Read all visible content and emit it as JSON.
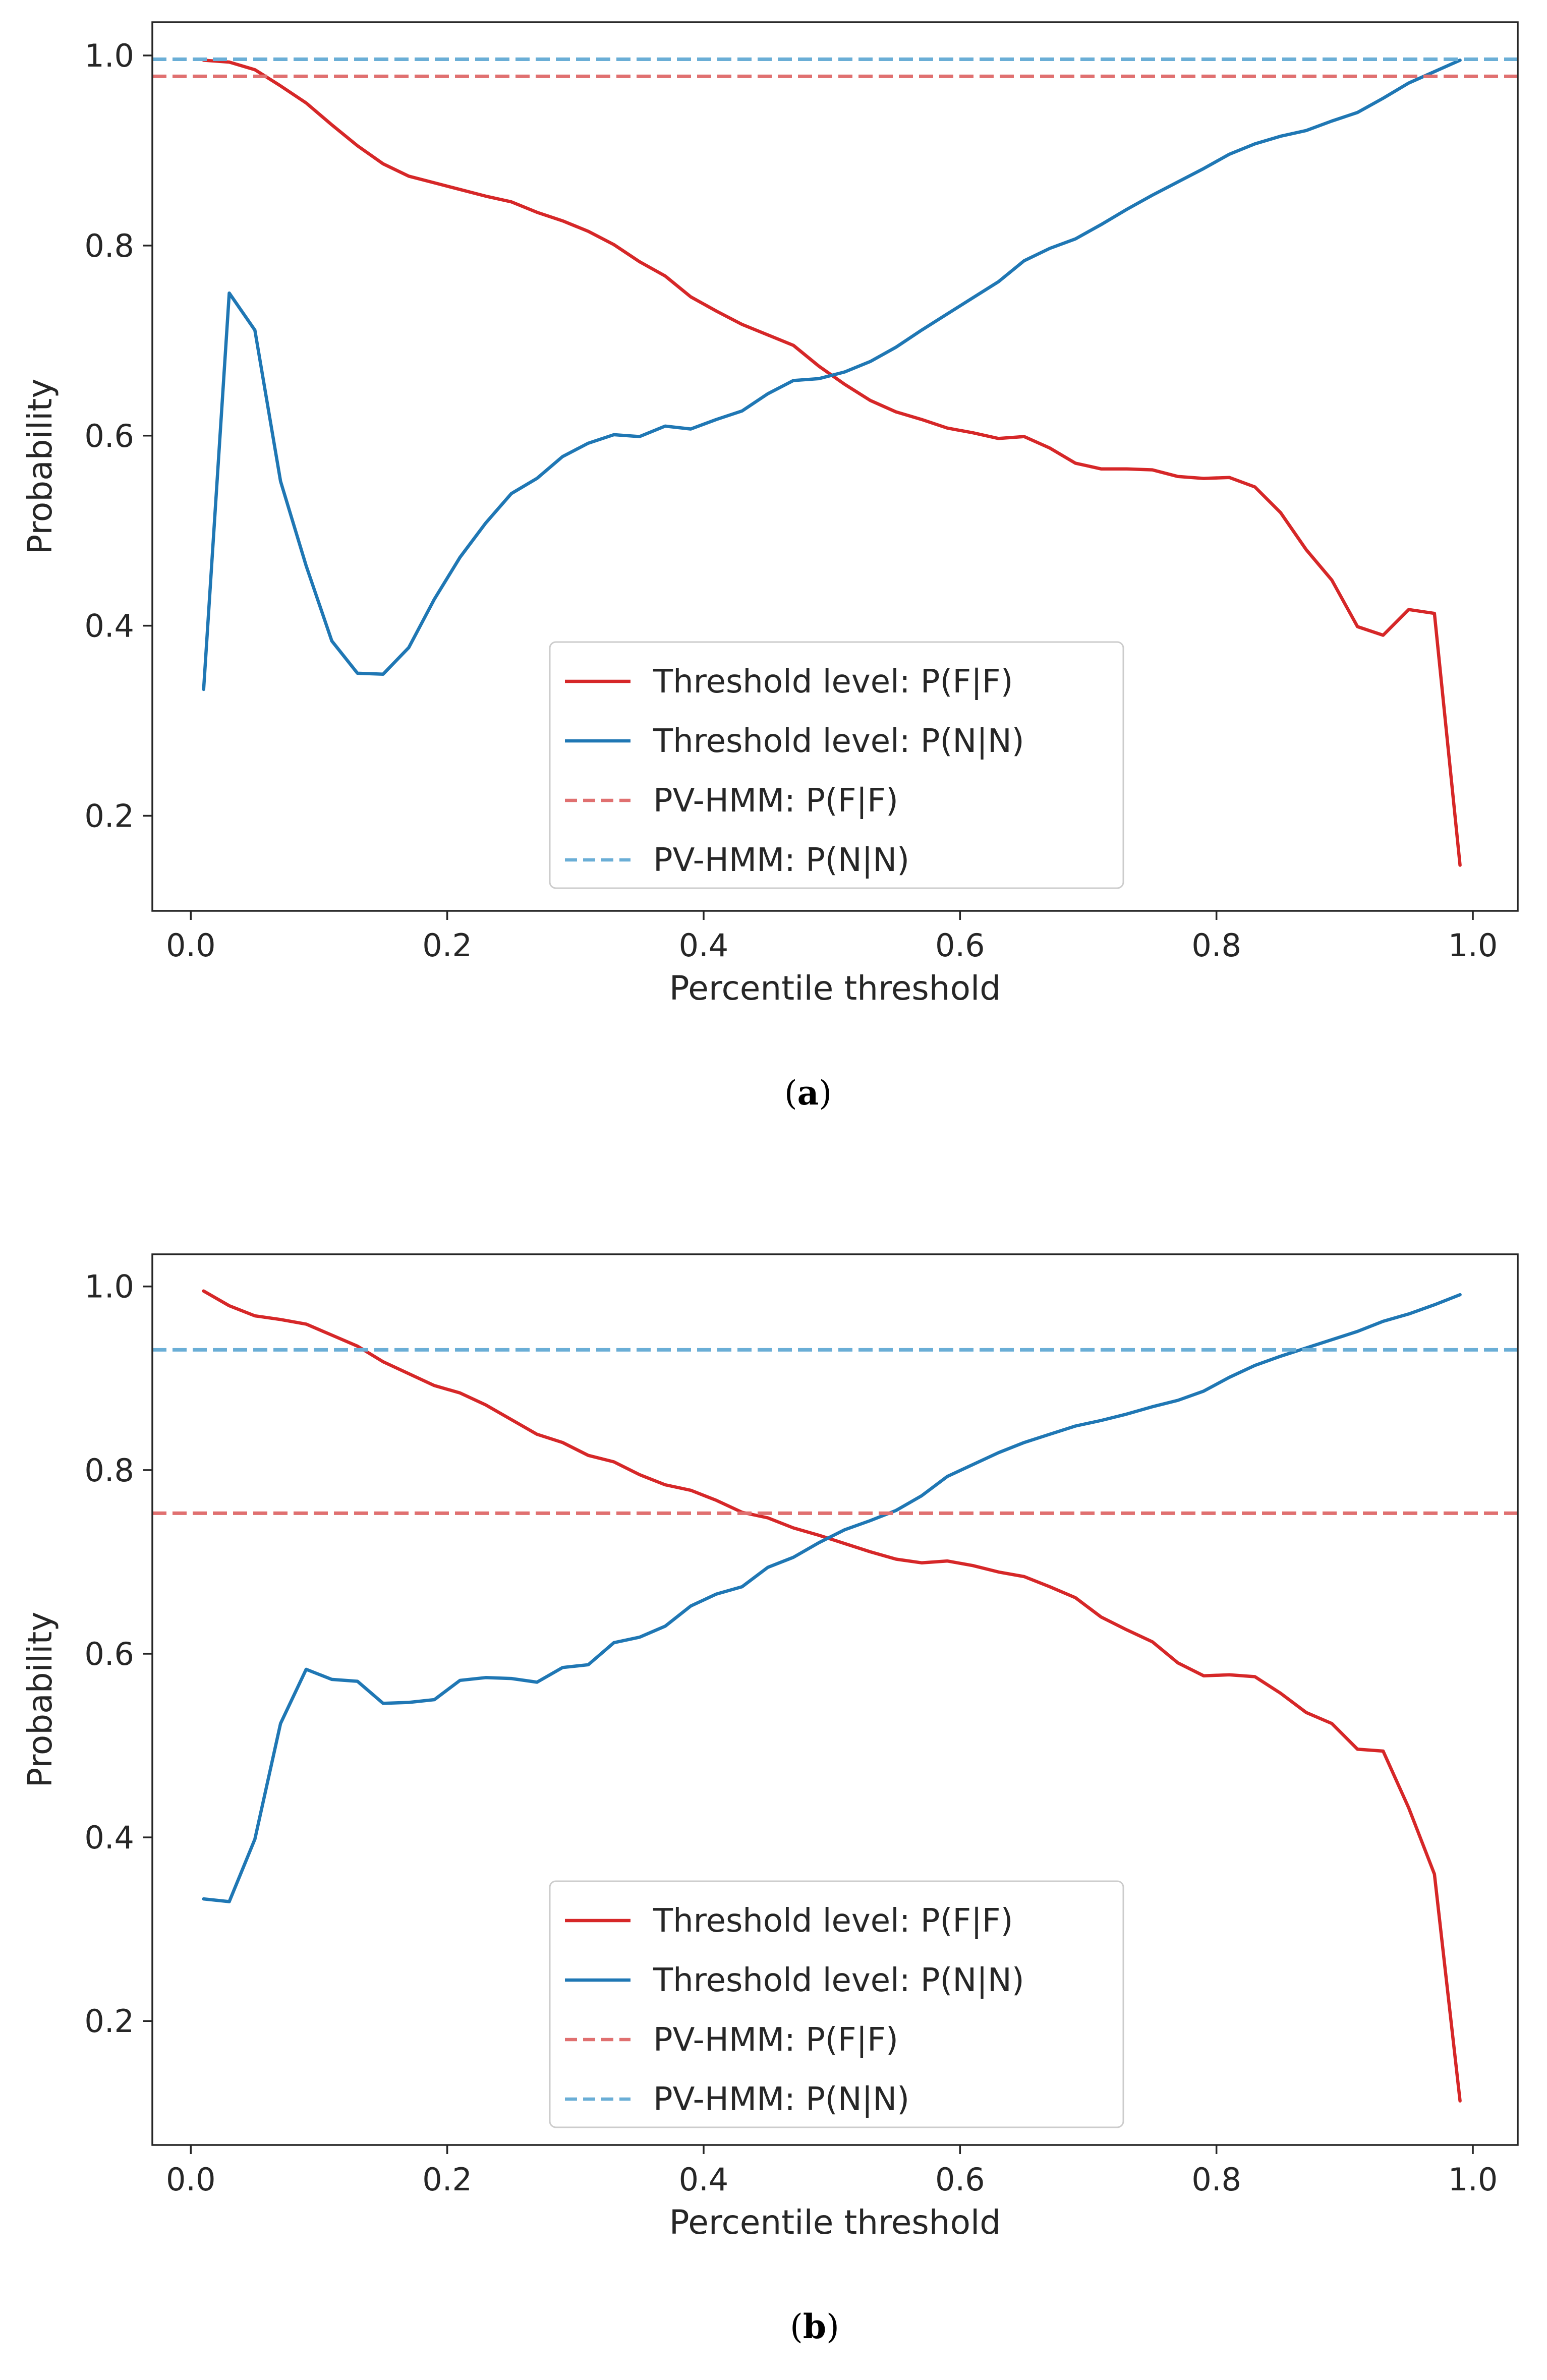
{
  "colors": {
    "red": "#d62728",
    "blue": "#1f77b4",
    "red_dashed": "#e07070",
    "blue_dashed": "#6aaed6",
    "axis": "#262626",
    "legend_border": "#cccccc"
  },
  "chart_data": [
    {
      "type": "line",
      "panel_label": "a",
      "xlabel": "Percentile threshold",
      "ylabel": "Probability",
      "xlim": [
        -0.03,
        1.035
      ],
      "ylim": [
        0.1,
        1.035
      ],
      "xticks": [
        0.0,
        0.2,
        0.4,
        0.6,
        0.8,
        1.0
      ],
      "xtick_labels": [
        "0.0",
        "0.2",
        "0.4",
        "0.6",
        "0.8",
        "1.0"
      ],
      "yticks": [
        0.2,
        0.4,
        0.6,
        0.8,
        1.0
      ],
      "ytick_labels": [
        "0.2",
        "0.4",
        "0.6",
        "0.8",
        "1.0"
      ],
      "grid": false,
      "legend_position": "lower-center",
      "x": [
        0.01,
        0.03,
        0.05,
        0.07,
        0.09,
        0.11,
        0.13,
        0.15,
        0.17,
        0.19,
        0.21,
        0.23,
        0.25,
        0.27,
        0.29,
        0.31,
        0.33,
        0.35,
        0.37,
        0.39,
        0.41,
        0.43,
        0.45,
        0.47,
        0.49,
        0.51,
        0.53,
        0.55,
        0.57,
        0.59,
        0.61,
        0.63,
        0.65,
        0.67,
        0.69,
        0.71,
        0.73,
        0.75,
        0.77,
        0.79,
        0.81,
        0.83,
        0.85,
        0.87,
        0.89,
        0.91,
        0.93,
        0.95,
        0.97,
        0.99
      ],
      "series": [
        {
          "name": "Threshold level: P(F|F)",
          "style": "solid",
          "color": "#d62728",
          "values": [
            0.995,
            0.993,
            0.985,
            0.968,
            0.95,
            0.927,
            0.905,
            0.886,
            0.873,
            0.866,
            0.859,
            0.852,
            0.846,
            0.835,
            0.826,
            0.815,
            0.801,
            0.783,
            0.768,
            0.746,
            0.731,
            0.717,
            0.706,
            0.695,
            0.673,
            0.654,
            0.637,
            0.625,
            0.617,
            0.608,
            0.603,
            0.597,
            0.599,
            0.587,
            0.571,
            0.565,
            0.565,
            0.564,
            0.557,
            0.555,
            0.556,
            0.546,
            0.519,
            0.48,
            0.448,
            0.399,
            0.39,
            0.417,
            0.413,
            0.148
          ]
        },
        {
          "name": "Threshold level: P(N|N)",
          "style": "solid",
          "color": "#1f77b4",
          "values": [
            0.333,
            0.75,
            0.711,
            0.552,
            0.463,
            0.384,
            0.35,
            0.349,
            0.377,
            0.428,
            0.472,
            0.508,
            0.539,
            0.555,
            0.578,
            0.592,
            0.601,
            0.599,
            0.61,
            0.607,
            0.617,
            0.626,
            0.644,
            0.658,
            0.66,
            0.667,
            0.678,
            0.693,
            0.711,
            0.728,
            0.745,
            0.762,
            0.784,
            0.797,
            0.807,
            0.822,
            0.838,
            0.853,
            0.867,
            0.881,
            0.896,
            0.907,
            0.915,
            0.921,
            0.931,
            0.94,
            0.955,
            0.971,
            0.983,
            0.995
          ]
        },
        {
          "name": "PV-HMM: P(F|F)",
          "style": "dashed",
          "color": "#e07070",
          "constant": 0.978
        },
        {
          "name": "PV-HMM: P(N|N)",
          "style": "dashed",
          "color": "#6aaed6",
          "constant": 0.996
        }
      ]
    },
    {
      "type": "line",
      "panel_label": "b",
      "xlabel": "Percentile threshold",
      "ylabel": "Probability",
      "xlim": [
        -0.03,
        1.035
      ],
      "ylim": [
        0.065,
        1.035
      ],
      "xticks": [
        0.0,
        0.2,
        0.4,
        0.6,
        0.8,
        1.0
      ],
      "xtick_labels": [
        "0.0",
        "0.2",
        "0.4",
        "0.6",
        "0.8",
        "1.0"
      ],
      "yticks": [
        0.2,
        0.4,
        0.6,
        0.8,
        1.0
      ],
      "ytick_labels": [
        "0.2",
        "0.4",
        "0.6",
        "0.8",
        "1.0"
      ],
      "grid": false,
      "legend_position": "lower-center",
      "x": [
        0.01,
        0.03,
        0.05,
        0.07,
        0.09,
        0.11,
        0.13,
        0.15,
        0.17,
        0.19,
        0.21,
        0.23,
        0.25,
        0.27,
        0.29,
        0.31,
        0.33,
        0.35,
        0.37,
        0.39,
        0.41,
        0.43,
        0.45,
        0.47,
        0.49,
        0.51,
        0.53,
        0.55,
        0.57,
        0.59,
        0.61,
        0.63,
        0.65,
        0.67,
        0.69,
        0.71,
        0.73,
        0.75,
        0.77,
        0.79,
        0.81,
        0.83,
        0.85,
        0.87,
        0.89,
        0.91,
        0.93,
        0.95,
        0.97,
        0.99
      ],
      "series": [
        {
          "name": "Threshold level: P(F|F)",
          "style": "solid",
          "color": "#d62728",
          "values": [
            0.995,
            0.979,
            0.968,
            0.964,
            0.959,
            0.947,
            0.935,
            0.918,
            0.905,
            0.892,
            0.884,
            0.871,
            0.855,
            0.839,
            0.83,
            0.816,
            0.809,
            0.795,
            0.784,
            0.778,
            0.767,
            0.754,
            0.748,
            0.737,
            0.729,
            0.72,
            0.711,
            0.703,
            0.699,
            0.701,
            0.696,
            0.689,
            0.684,
            0.673,
            0.661,
            0.64,
            0.626,
            0.613,
            0.59,
            0.576,
            0.577,
            0.575,
            0.557,
            0.536,
            0.524,
            0.496,
            0.494,
            0.432,
            0.36,
            0.113
          ]
        },
        {
          "name": "Threshold level: P(N|N)",
          "style": "solid",
          "color": "#1f77b4",
          "values": [
            0.333,
            0.33,
            0.398,
            0.524,
            0.583,
            0.572,
            0.57,
            0.546,
            0.547,
            0.55,
            0.571,
            0.574,
            0.573,
            0.569,
            0.585,
            0.588,
            0.612,
            0.618,
            0.63,
            0.652,
            0.665,
            0.673,
            0.694,
            0.705,
            0.721,
            0.735,
            0.745,
            0.756,
            0.772,
            0.793,
            0.806,
            0.819,
            0.83,
            0.839,
            0.848,
            0.854,
            0.861,
            0.869,
            0.876,
            0.886,
            0.901,
            0.914,
            0.924,
            0.933,
            0.942,
            0.951,
            0.962,
            0.97,
            0.98,
            0.991
          ]
        },
        {
          "name": "PV-HMM: P(F|F)",
          "style": "dashed",
          "color": "#e07070",
          "constant": 0.753
        },
        {
          "name": "PV-HMM: P(N|N)",
          "style": "dashed",
          "color": "#6aaed6",
          "constant": 0.931
        }
      ]
    }
  ]
}
